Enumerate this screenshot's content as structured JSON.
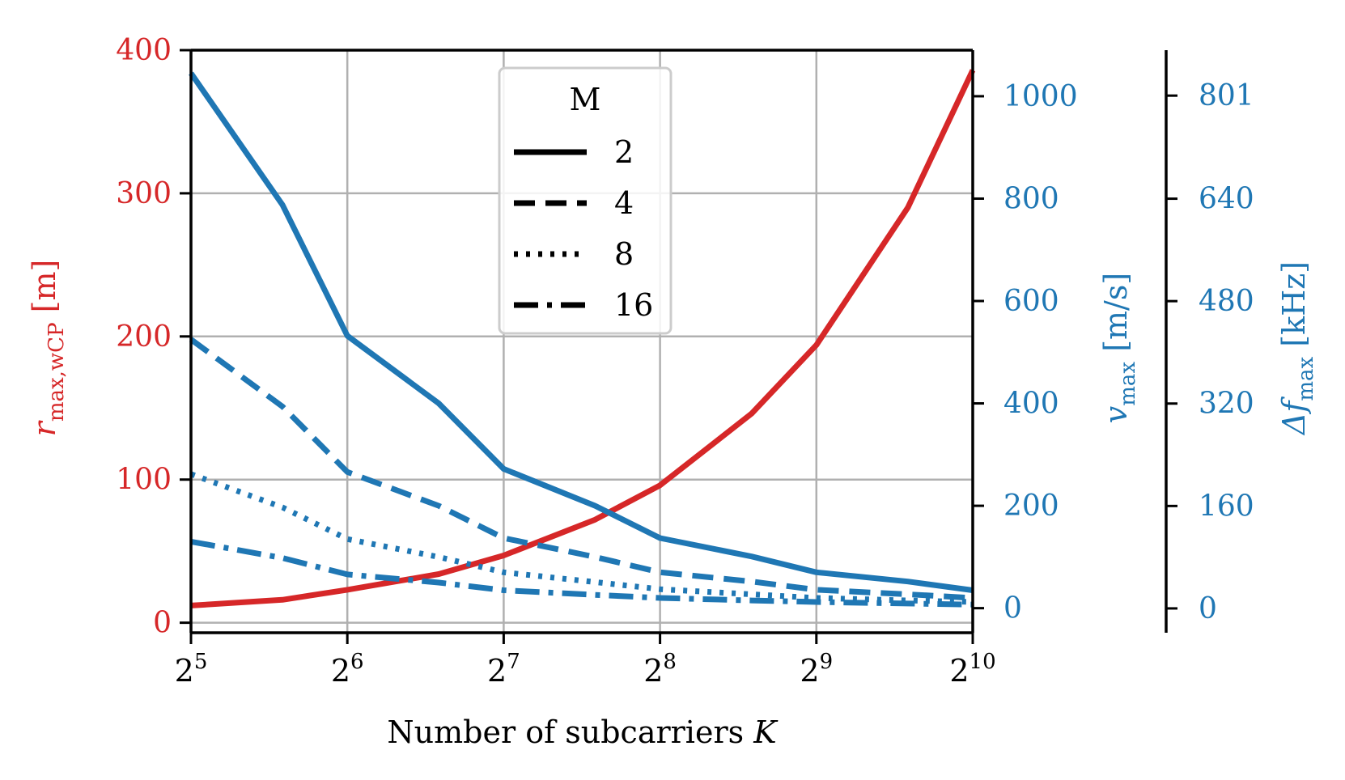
{
  "chart_data": {
    "type": "line",
    "title": "",
    "x_axis": {
      "label": "Number of subcarriers K",
      "label_text": "Number of subcarriers ",
      "label_var": "K",
      "scale": "log2",
      "range": [
        32,
        1024
      ],
      "ticks": [
        {
          "value": 32,
          "base": "2",
          "exp": "5"
        },
        {
          "value": 64,
          "base": "2",
          "exp": "6"
        },
        {
          "value": 128,
          "base": "2",
          "exp": "7"
        },
        {
          "value": 256,
          "base": "2",
          "exp": "8"
        },
        {
          "value": 512,
          "base": "2",
          "exp": "9"
        },
        {
          "value": 1024,
          "base": "2",
          "exp": "10"
        }
      ]
    },
    "left_axis": {
      "label": "r_max,wCP [m]",
      "label_var": "r",
      "label_sub": "max,wCP",
      "label_unit": " [m]",
      "color": "#d62728",
      "range": [
        -7,
        400
      ],
      "ticks": [
        0,
        100,
        200,
        300,
        400
      ],
      "tick_labels": [
        "0",
        "100",
        "200",
        "300",
        "400"
      ]
    },
    "right_axis_1": {
      "label": "v_max [m/s]",
      "label_var": "v",
      "label_sub": "max",
      "label_unit": " [m/s]",
      "color": "#1f77b4",
      "range": [
        -48,
        1090
      ],
      "ticks": [
        0,
        200,
        400,
        600,
        800,
        1000
      ],
      "tick_labels": [
        "0",
        "200",
        "400",
        "600",
        "800",
        "1000"
      ]
    },
    "right_axis_2": {
      "label": "Δf_max [kHz]",
      "label_var": "Δf",
      "label_sub": "max",
      "label_unit": " [kHz]",
      "color": "#1f77b4",
      "range": [
        -38,
        872
      ],
      "ticks": [
        0,
        160,
        320,
        480,
        640,
        801
      ],
      "tick_labels": [
        "0",
        "160",
        "320",
        "480",
        "640",
        "801"
      ]
    },
    "grid": true,
    "legend": {
      "title": "M",
      "placement": "upper-center",
      "entries": [
        {
          "label": "2",
          "dash": "solid"
        },
        {
          "label": "4",
          "dash": "dashed"
        },
        {
          "label": "8",
          "dash": "dotted"
        },
        {
          "label": "16",
          "dash": "dashdot"
        }
      ]
    },
    "series": [
      {
        "axis": "left",
        "color": "#d62728",
        "dash": "solid",
        "x": [
          32,
          48,
          64,
          96,
          128,
          192,
          256,
          384,
          512,
          768,
          1024
        ],
        "y": [
          12,
          16,
          23,
          34,
          47,
          72,
          96,
          146,
          194,
          290,
          386
        ]
      },
      {
        "axis": "right1",
        "M": "2",
        "color": "#1f77b4",
        "dash": "solid",
        "x": [
          32,
          48,
          64,
          96,
          128,
          192,
          256,
          384,
          512,
          768,
          1024
        ],
        "y": [
          1045,
          788,
          532,
          400,
          272,
          200,
          137,
          101,
          70,
          52,
          35
        ]
      },
      {
        "axis": "right1",
        "M": "4",
        "color": "#1f77b4",
        "dash": "dashed",
        "x": [
          32,
          48,
          64,
          96,
          128,
          192,
          256,
          384,
          512,
          768,
          1024
        ],
        "y": [
          525,
          394,
          266,
          200,
          137,
          100,
          70,
          52,
          36,
          27,
          20
        ]
      },
      {
        "axis": "right1",
        "M": "8",
        "color": "#1f77b4",
        "dash": "dotted",
        "x": [
          32,
          48,
          64,
          96,
          128,
          192,
          256,
          384,
          512,
          768,
          1024
        ],
        "y": [
          262,
          197,
          135,
          100,
          70,
          51,
          37,
          27,
          20,
          15,
          12
        ]
      },
      {
        "axis": "right1",
        "M": "16",
        "color": "#1f77b4",
        "dash": "dashdot",
        "x": [
          32,
          48,
          64,
          96,
          128,
          192,
          256,
          384,
          512,
          768,
          1024
        ],
        "y": [
          130,
          98,
          66,
          50,
          35,
          26,
          20,
          15,
          12,
          9,
          7
        ]
      }
    ]
  }
}
